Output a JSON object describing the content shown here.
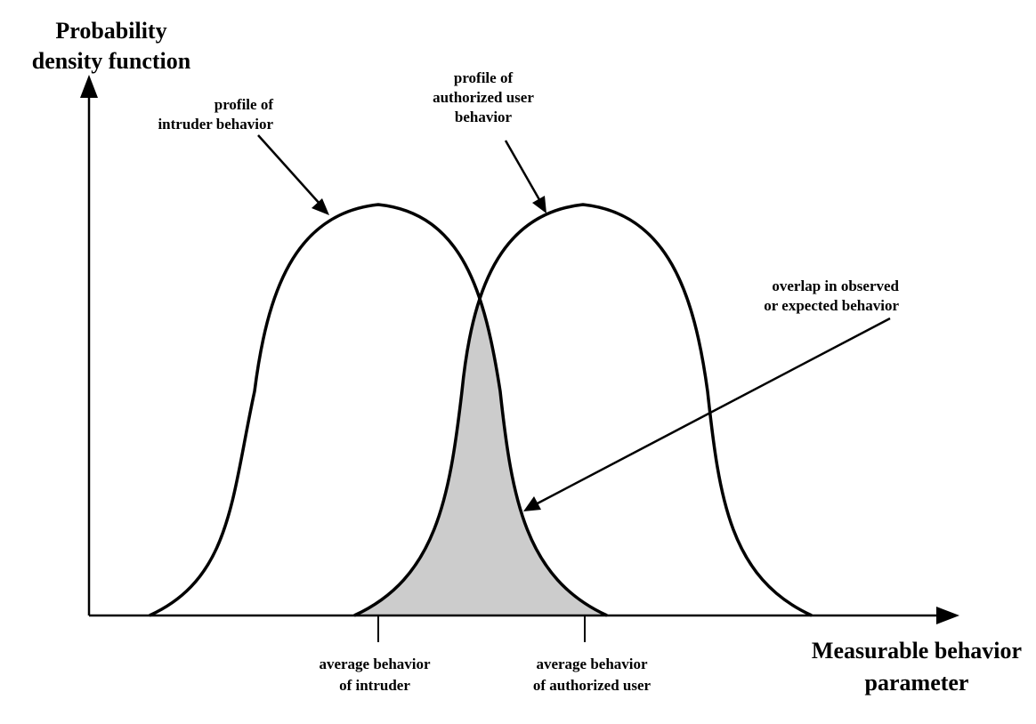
{
  "axes": {
    "y_label_line1": "Probability",
    "y_label_line2": "density function",
    "x_label_line1": "Measurable behavior",
    "x_label_line2": "parameter"
  },
  "annotations": {
    "intruder_profile": [
      "profile of",
      "intruder behavior"
    ],
    "authorized_profile": [
      "profile of",
      "authorized user",
      "behavior"
    ],
    "overlap": [
      "overlap in observed",
      "or expected behavior"
    ],
    "avg_intruder": [
      "average behavior",
      "of intruder"
    ],
    "avg_authorized": [
      "average behavior",
      "of authorized user"
    ]
  },
  "colors": {
    "line": "#000000",
    "overlap_fill": "#cccccc",
    "background": "#ffffff"
  }
}
